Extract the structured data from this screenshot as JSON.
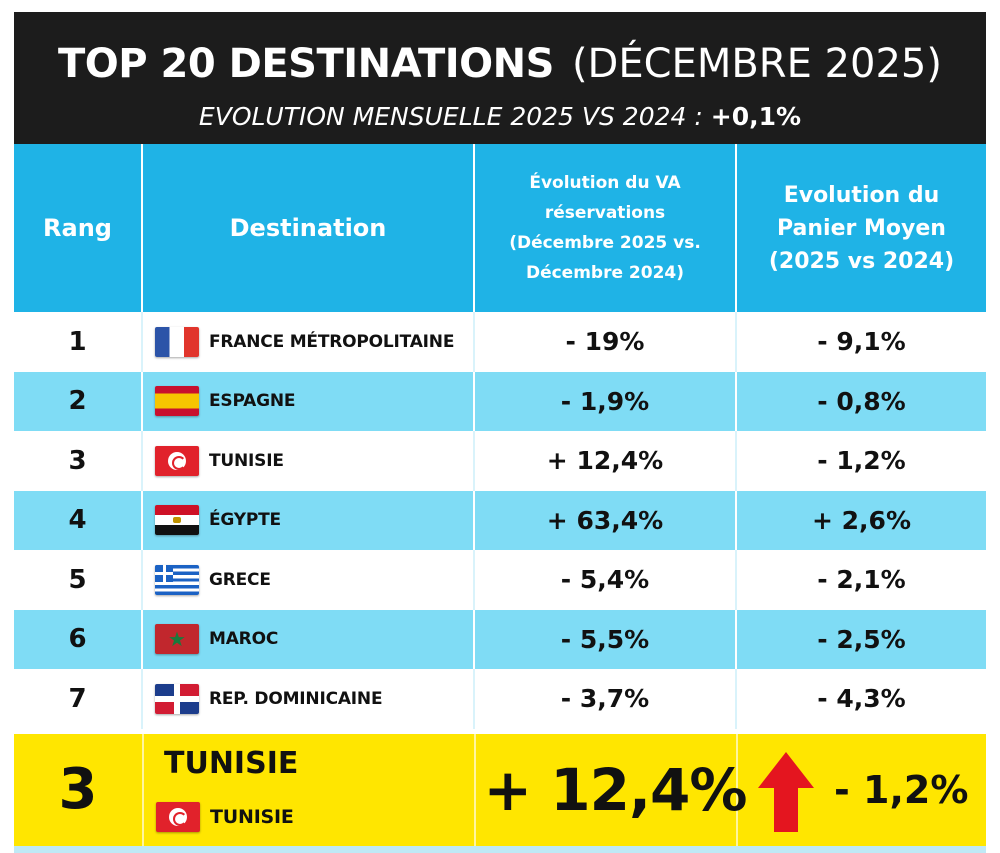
{
  "header": {
    "title_main": "TOP 20 DESTINATIONS",
    "title_sub": "(DÉCEMBRE 2025)",
    "subtitle_text": "EVOLUTION MENSUELLE 2025 VS 2024 :",
    "subtitle_value": "+0,1%"
  },
  "table": {
    "columns": {
      "rank": "Rang",
      "destination": "Destination",
      "va": [
        "Évolution du VA",
        "réservations",
        "(Décembre 2025 vs.",
        "Décembre 2024)"
      ],
      "panier": [
        "Evolution du",
        "Panier Moyen",
        "(2025 vs 2024)"
      ]
    },
    "rows": [
      {
        "rank": "1",
        "flag": "france-flag-icon",
        "name": "FRANCE MÉTROPOLITAINE",
        "va": "- 19%",
        "panier": "- 9,1%"
      },
      {
        "rank": "2",
        "flag": "spain-flag-icon",
        "name": "ESPAGNE",
        "va": "- 1,9%",
        "panier": "- 0,8%"
      },
      {
        "rank": "3",
        "flag": "tunisia-flag-icon",
        "name": "TUNISIE",
        "va": "+ 12,4%",
        "panier": "- 1,2%"
      },
      {
        "rank": "4",
        "flag": "egypt-flag-icon",
        "name": "ÉGYPTE",
        "va": "+ 63,4%",
        "panier": "+ 2,6%"
      },
      {
        "rank": "5",
        "flag": "greece-flag-icon",
        "name": "GRECE",
        "va": "- 5,4%",
        "panier": "- 2,1%"
      },
      {
        "rank": "6",
        "flag": "morocco-flag-icon",
        "name": "MAROC",
        "va": "- 5,5%",
        "panier": "- 2,5%"
      },
      {
        "rank": "7",
        "flag": "dominican-republic-flag-icon",
        "name": "REP. DOMINICAINE",
        "va": "- 3,7%",
        "panier": "- 4,3%"
      }
    ]
  },
  "highlight": {
    "rank": "3",
    "title": "TUNISIE",
    "flag": "tunisia-flag-icon",
    "name": "TUNISIE",
    "va": "+ 12,4%",
    "arrow": "red-up-arrow-icon",
    "panier": "- 1,2%"
  },
  "colors": {
    "header_bg": "#1c1c1c",
    "table_header_bg": "#1fb3e6",
    "row_alt_bg": "#7fdcf5",
    "highlight_bg": "#ffe600",
    "arrow_red": "#e4151f"
  }
}
